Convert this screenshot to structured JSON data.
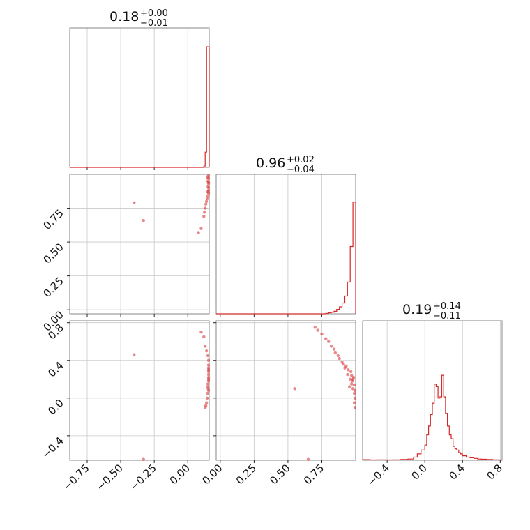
{
  "chart_data": {
    "type": "corner",
    "color": "#d62728",
    "grid": true,
    "parameters": [
      {
        "index": 0,
        "range": [
          -0.88,
          0.16
        ],
        "ticks": [
          -0.75,
          -0.5,
          -0.25,
          0.0
        ],
        "tick_labels": [
          "−0.75",
          "−0.50",
          "−0.25",
          "0.00"
        ]
      },
      {
        "index": 1,
        "range": [
          -0.03,
          1.0
        ],
        "ticks": [
          0.0,
          0.25,
          0.5,
          0.75
        ],
        "tick_labels": [
          "0.00",
          "0.25",
          "0.50",
          "0.75"
        ]
      },
      {
        "index": 2,
        "range": [
          -0.66,
          0.82
        ],
        "ticks": [
          -0.4,
          0.0,
          0.4,
          0.8
        ],
        "tick_labels": [
          "−0.4",
          "0.0",
          "0.4",
          "0.8"
        ]
      }
    ],
    "titles": [
      {
        "value": "0.18",
        "upper": "+0.00",
        "lower": "−0.01"
      },
      {
        "value": "0.96",
        "upper": "+0.02",
        "lower": "−0.04"
      },
      {
        "value": "0.19",
        "upper": "+0.14",
        "lower": "−0.11"
      }
    ],
    "histograms": [
      {
        "param": 0,
        "bin_edges": [
          0.12,
          0.13,
          0.14,
          0.15,
          0.16
        ],
        "counts": [
          0.01,
          0.12,
          0.95,
          0.95
        ]
      },
      {
        "param": 1,
        "bin_edges": [
          0.78,
          0.8,
          0.82,
          0.84,
          0.86,
          0.88,
          0.9,
          0.92,
          0.94,
          0.96,
          0.98,
          1.0
        ],
        "counts": [
          0.004,
          0.008,
          0.012,
          0.02,
          0.035,
          0.055,
          0.085,
          0.14,
          0.25,
          0.53,
          0.88
        ]
      },
      {
        "param": 2,
        "bin_edges": [
          -0.66,
          -0.58,
          -0.5,
          -0.42,
          -0.34,
          -0.26,
          -0.18,
          -0.12,
          -0.08,
          -0.04,
          0.0,
          0.02,
          0.04,
          0.06,
          0.08,
          0.1,
          0.12,
          0.14,
          0.16,
          0.18,
          0.2,
          0.22,
          0.24,
          0.26,
          0.28,
          0.3,
          0.32,
          0.34,
          0.36,
          0.38,
          0.4,
          0.44,
          0.48,
          0.52,
          0.56,
          0.6,
          0.66,
          0.72,
          0.78,
          0.82
        ],
        "counts": [
          0.005,
          0.003,
          0.004,
          0.003,
          0.004,
          0.006,
          0.01,
          0.025,
          0.05,
          0.08,
          0.12,
          0.2,
          0.27,
          0.36,
          0.45,
          0.6,
          0.58,
          0.49,
          0.5,
          0.67,
          0.5,
          0.37,
          0.27,
          0.2,
          0.17,
          0.11,
          0.09,
          0.08,
          0.06,
          0.05,
          0.035,
          0.025,
          0.02,
          0.015,
          0.01,
          0.008,
          0.006,
          0.004,
          0.003
        ]
      }
    ],
    "scatter": [
      {
        "x_param": 0,
        "y_param": 1,
        "points": [
          [
            0.145,
            0.98
          ],
          [
            0.15,
            0.95
          ],
          [
            0.155,
            0.93
          ],
          [
            0.16,
            0.9
          ],
          [
            0.158,
            0.88
          ],
          [
            0.155,
            0.86
          ],
          [
            0.15,
            0.84
          ],
          [
            0.145,
            0.82
          ],
          [
            0.14,
            0.8
          ],
          [
            0.135,
            0.78
          ],
          [
            0.13,
            0.75
          ],
          [
            0.125,
            0.72
          ],
          [
            0.12,
            0.69
          ],
          [
            0.16,
            0.99
          ],
          [
            0.158,
            0.97
          ],
          [
            0.162,
            0.94
          ],
          [
            0.152,
            0.91
          ],
          [
            0.148,
            0.87
          ],
          [
            0.1,
            0.6
          ],
          [
            -0.4,
            0.79
          ],
          [
            -0.33,
            0.66
          ],
          [
            0.08,
            0.57
          ]
        ]
      },
      {
        "x_param": 0,
        "y_param": 2,
        "points": [
          [
            0.16,
            0.4
          ],
          [
            0.158,
            0.35
          ],
          [
            0.155,
            0.3
          ],
          [
            0.16,
            0.25
          ],
          [
            0.155,
            0.2
          ],
          [
            0.15,
            0.15
          ],
          [
            0.152,
            0.1
          ],
          [
            0.148,
            0.05
          ],
          [
            0.145,
            0.0
          ],
          [
            0.14,
            -0.05
          ],
          [
            0.135,
            -0.08
          ],
          [
            0.13,
            -0.1
          ],
          [
            0.12,
            0.65
          ],
          [
            0.13,
            0.55
          ],
          [
            0.14,
            0.5
          ],
          [
            0.15,
            0.45
          ],
          [
            0.158,
            0.28
          ],
          [
            0.16,
            0.18
          ],
          [
            0.157,
            0.08
          ],
          [
            0.16,
            0.32
          ],
          [
            0.155,
            0.22
          ],
          [
            0.15,
            0.12
          ],
          [
            -0.4,
            0.46
          ],
          [
            -0.33,
            -0.65
          ],
          [
            0.1,
            0.7
          ]
        ]
      },
      {
        "x_param": 1,
        "y_param": 2,
        "points": [
          [
            0.7,
            0.75
          ],
          [
            0.75,
            0.68
          ],
          [
            0.8,
            0.6
          ],
          [
            0.84,
            0.52
          ],
          [
            0.87,
            0.45
          ],
          [
            0.9,
            0.38
          ],
          [
            0.92,
            0.32
          ],
          [
            0.94,
            0.25
          ],
          [
            0.96,
            0.2
          ],
          [
            0.97,
            0.15
          ],
          [
            0.98,
            0.1
          ],
          [
            0.99,
            0.05
          ],
          [
            1.0,
            0.0
          ],
          [
            0.99,
            -0.05
          ],
          [
            0.985,
            0.22
          ],
          [
            0.975,
            0.18
          ],
          [
            0.965,
            0.28
          ],
          [
            0.955,
            0.12
          ],
          [
            0.945,
            0.3
          ],
          [
            0.93,
            0.34
          ],
          [
            0.91,
            0.36
          ],
          [
            0.88,
            0.42
          ],
          [
            0.85,
            0.48
          ],
          [
            0.82,
            0.55
          ],
          [
            0.78,
            0.63
          ],
          [
            0.72,
            0.72
          ],
          [
            0.995,
            0.08
          ],
          [
            0.99,
            0.14
          ],
          [
            0.98,
            0.2
          ],
          [
            0.97,
            0.24
          ],
          [
            0.55,
            0.1
          ],
          [
            0.65,
            -0.65
          ],
          [
            1.0,
            -0.1
          ]
        ]
      }
    ]
  }
}
